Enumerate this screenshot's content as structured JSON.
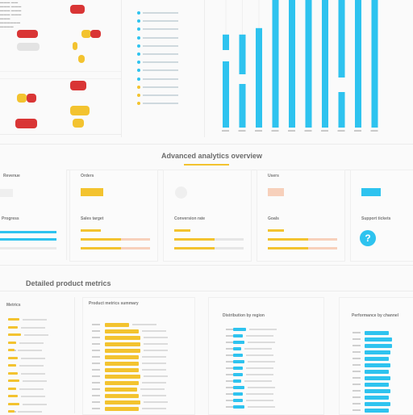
{
  "colors": {
    "accent_cyan": "#2ec3ef",
    "accent_yellow": "#f3c32f",
    "accent_red": "#d93535",
    "peach": "#f7d0bb"
  },
  "top_section": {
    "list_item_count": 12
  },
  "chart_data": {
    "type": "bar",
    "categories": [
      "",
      "",
      "",
      "",
      "",
      "",
      "",
      "",
      "",
      ""
    ],
    "series": [
      {
        "values": [
          0.72,
          0.72,
          0.77,
          1.0,
          1.0,
          1.0,
          1.0,
          1.0,
          1.0,
          1.0
        ]
      }
    ],
    "xlabel": "",
    "ylabel": "",
    "ylim": [
      0,
      1
    ]
  },
  "middle_section": {
    "title": "Advanced analytics overview",
    "cards": [
      {
        "label": "Revenue",
        "bar_color": "none",
        "caption": "Progress",
        "has_badge": false
      },
      {
        "label": "Orders",
        "bar_color": "#f3c32f",
        "caption": "Sales target",
        "has_badge": false
      },
      {
        "label": "",
        "bar_color": "none",
        "caption": "Conversion rate",
        "has_badge": false
      },
      {
        "label": "Users",
        "bar_color": "#f7d0bb",
        "caption": "Goals",
        "has_badge": false
      },
      {
        "label": "",
        "bar_color": "#2ec3ef",
        "caption": "Support tickets",
        "has_badge": true,
        "badge_text": "?"
      }
    ]
  },
  "bottom_section": {
    "title": "Detailed product metrics",
    "panels": [
      {
        "title": "Metrics"
      },
      {
        "title": "Product metrics summary"
      },
      {
        "title": "Distribution by region"
      },
      {
        "title": "Performance by channel"
      }
    ]
  }
}
